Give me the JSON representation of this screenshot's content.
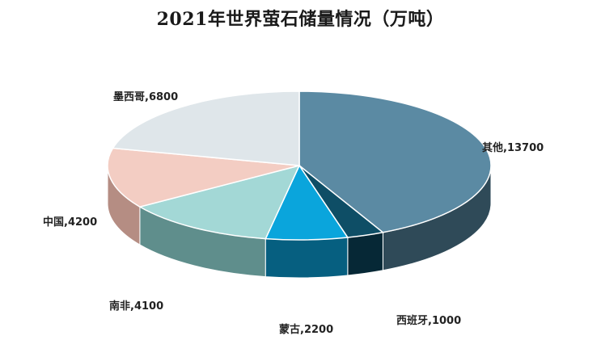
{
  "chart_data": {
    "type": "pie",
    "title": "2021年世界萤石储量情况（万吨）",
    "unit": "万吨",
    "slices": [
      {
        "name": "其他",
        "value": 13700,
        "color": "#5b8aa3",
        "side": "#2f4a58",
        "label": "其他,13700"
      },
      {
        "name": "西班牙",
        "value": 1000,
        "color": "#0e4e66",
        "side": "#062836",
        "label": "西班牙,1000"
      },
      {
        "name": "蒙古",
        "value": 2200,
        "color": "#0aa5dc",
        "side": "#065f80",
        "label": "蒙古,2200"
      },
      {
        "name": "南非",
        "value": 4100,
        "color": "#a3d8d6",
        "side": "#5f8e8c",
        "label": "南非,4100"
      },
      {
        "name": "中国",
        "value": 4200,
        "color": "#f3cdc3",
        "side": "#b58d83",
        "label": "中国,4200"
      },
      {
        "name": "墨西哥",
        "value": 6800,
        "color": "#dfe6ea",
        "side": "#9aa4aa",
        "label": "墨西哥,6800"
      }
    ]
  }
}
